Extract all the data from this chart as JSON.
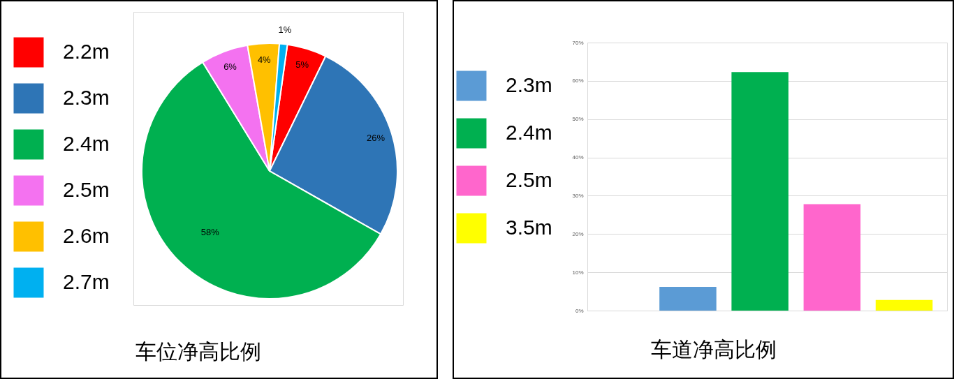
{
  "chart_data": [
    {
      "type": "pie",
      "title": "车位净高比例",
      "categories": [
        "2.2m",
        "2.3m",
        "2.4m",
        "2.5m",
        "2.6m",
        "2.7m"
      ],
      "values": [
        5,
        26,
        58,
        6,
        4,
        1
      ],
      "colors": [
        "#ff0000",
        "#2e75b6",
        "#00b050",
        "#f472f0",
        "#ffc000",
        "#00b0f0"
      ],
      "value_labels": [
        "5%",
        "26%",
        "58%",
        "6%",
        "4%",
        "1%"
      ],
      "legend": "left"
    },
    {
      "type": "bar",
      "title": "车道净高比例",
      "categories": [
        null,
        null,
        null,
        null,
        null
      ],
      "series": [
        {
          "name": "2.3m",
          "color": "#5b9bd5",
          "values": [
            null,
            6.2,
            null,
            null,
            null
          ]
        },
        {
          "name": "2.4m",
          "color": "#00b050",
          "values": [
            null,
            null,
            62.3,
            null,
            null
          ]
        },
        {
          "name": "2.5m",
          "color": "#ff66cc",
          "values": [
            null,
            null,
            null,
            27.8,
            null
          ]
        },
        {
          "name": "3.5m",
          "color": "#ffff00",
          "values": [
            null,
            null,
            null,
            null,
            2.8
          ]
        }
      ],
      "ylim": [
        0,
        70
      ],
      "yticks": [
        {
          "value": 0,
          "label": "0%"
        },
        {
          "value": 10,
          "label": "10%"
        },
        {
          "value": 20,
          "label": "20%"
        },
        {
          "value": 30,
          "label": "30%"
        },
        {
          "value": 40,
          "label": "40%"
        },
        {
          "value": 50,
          "label": "50%"
        },
        {
          "value": 60,
          "label": "60%"
        },
        {
          "value": 70,
          "label": "70%"
        }
      ],
      "grid": "y",
      "legend": "left",
      "tick_labels": "y"
    }
  ]
}
